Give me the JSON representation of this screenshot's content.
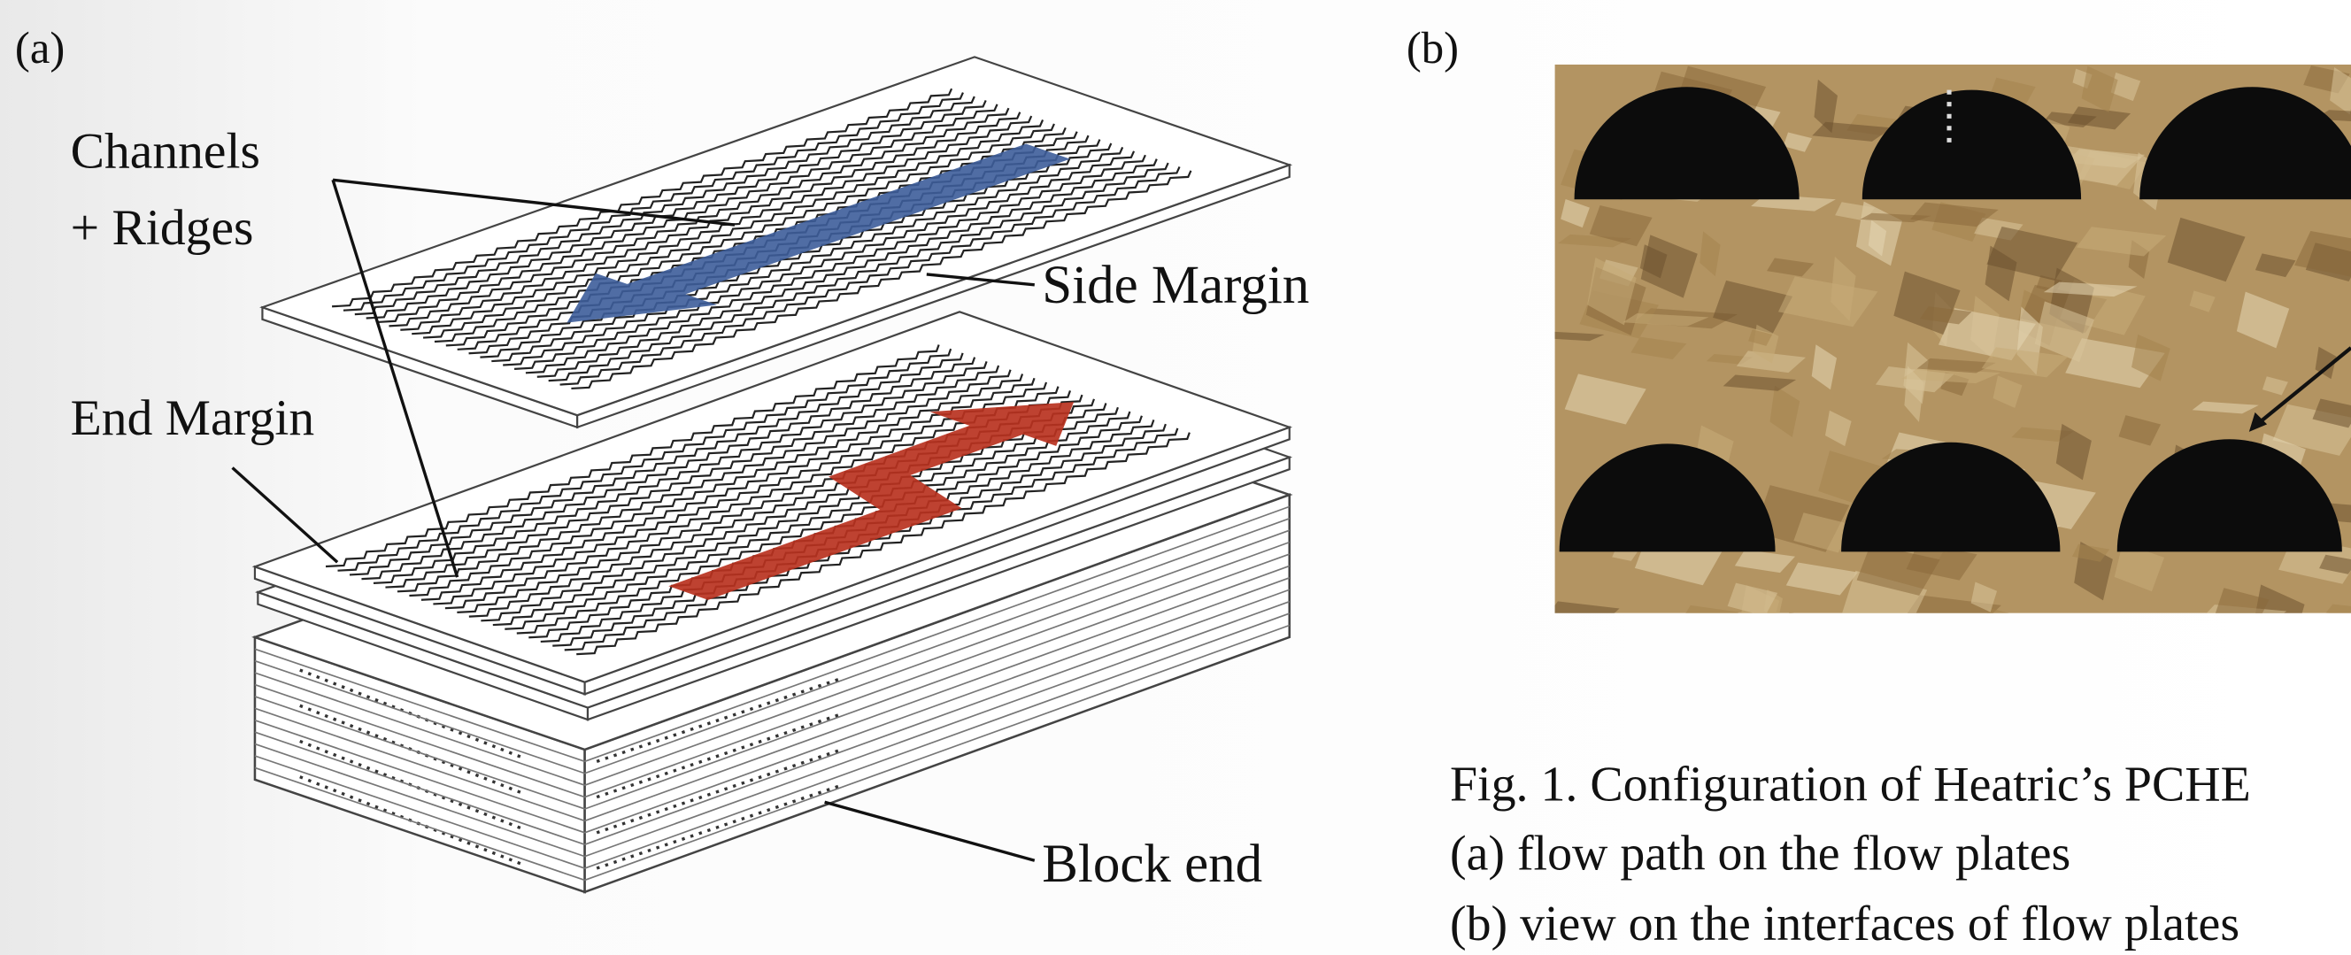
{
  "panel_a": {
    "label": "(a)",
    "annotations": {
      "channels": "Channels",
      "ridges": "+ Ridges",
      "side_margin": "Side Margin",
      "end_margin": "End Margin",
      "block_end": "Block end"
    }
  },
  "panel_b": {
    "label": "(b)"
  },
  "caption": [
    "Fig. 1. Configuration of Heatric’s PCHE",
    "(a) flow path on the flow plates",
    "(b) view on the interfaces of flow plates"
  ]
}
